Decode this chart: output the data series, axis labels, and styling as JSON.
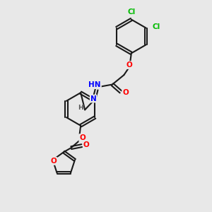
{
  "background_color": "#e8e8e8",
  "bond_color": "#1a1a1a",
  "atom_colors": {
    "O": "#ff0000",
    "N": "#0000ff",
    "Cl": "#00bb00",
    "H": "#555555",
    "C": "#1a1a1a"
  },
  "figsize": [
    3.0,
    3.0
  ],
  "dpi": 100
}
